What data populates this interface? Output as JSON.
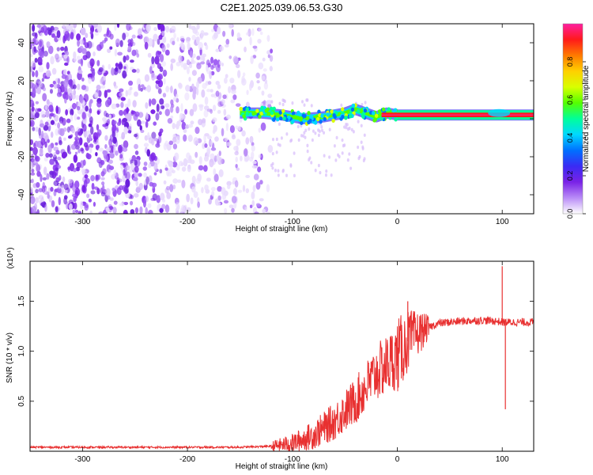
{
  "title": "C2E1.2025.039.06.53.G30",
  "chart_data": [
    {
      "type": "heatmap",
      "xlabel": "Height of straight line (km)",
      "ylabel": "Frequency (Hz)",
      "xlim": [
        -350,
        130
      ],
      "ylim": [
        -50,
        50
      ],
      "xticks": [
        -300,
        -200,
        -100,
        0,
        100
      ],
      "yticks": [
        -40,
        -20,
        0,
        20,
        40
      ],
      "colorbar": {
        "label": "Normalized spectral amplitude",
        "range": [
          0,
          1
        ],
        "ticks": [
          "0.0",
          "0.2",
          "0.4",
          "0.6",
          "0.8"
        ],
        "colors": [
          "#ffffff",
          "#b98cf7",
          "#7a22e6",
          "#3a2bf4",
          "#0070ff",
          "#00d8ff",
          "#00ff9a",
          "#54ff00",
          "#d8ff00",
          "#ffd000",
          "#ff7a00",
          "#ff1a1a",
          "#ff1fa0"
        ]
      },
      "signal_track": [
        {
          "x": -150,
          "y": 3
        },
        {
          "x": -130,
          "y": 3
        },
        {
          "x": -110,
          "y": 2
        },
        {
          "x": -90,
          "y": 0
        },
        {
          "x": -70,
          "y": 1
        },
        {
          "x": -50,
          "y": 3
        },
        {
          "x": -40,
          "y": 5
        },
        {
          "x": -30,
          "y": 3
        },
        {
          "x": -20,
          "y": 1
        },
        {
          "x": -10,
          "y": 3
        },
        {
          "x": 0,
          "y": 2
        },
        {
          "x": 50,
          "y": 2
        },
        {
          "x": 100,
          "y": 2
        },
        {
          "x": 130,
          "y": 2
        }
      ]
    },
    {
      "type": "line",
      "xlabel": "Height of straight line (km)",
      "ylabel": "SNR (10 * v/v)",
      "scale_label": "(x10⁴)",
      "xlim": [
        -350,
        130
      ],
      "ylim": [
        0,
        1.9
      ],
      "xticks": [
        -300,
        -200,
        -100,
        0,
        100
      ],
      "yticks": [
        "0.5",
        "1.0",
        "1.5"
      ],
      "series": [
        {
          "color": "#e83030",
          "points": [
            {
              "x": -350,
              "y": 0.04
            },
            {
              "x": -300,
              "y": 0.04
            },
            {
              "x": -250,
              "y": 0.04
            },
            {
              "x": -200,
              "y": 0.04
            },
            {
              "x": -150,
              "y": 0.04
            },
            {
              "x": -120,
              "y": 0.05
            },
            {
              "x": -100,
              "y": 0.08
            },
            {
              "x": -80,
              "y": 0.16
            },
            {
              "x": -60,
              "y": 0.3
            },
            {
              "x": -40,
              "y": 0.5
            },
            {
              "x": -20,
              "y": 0.78
            },
            {
              "x": 0,
              "y": 0.95
            },
            {
              "x": 10,
              "y": 1.1
            },
            {
              "x": 20,
              "y": 1.18
            },
            {
              "x": 30,
              "y": 1.24
            },
            {
              "x": 40,
              "y": 1.28
            },
            {
              "x": 60,
              "y": 1.3
            },
            {
              "x": 80,
              "y": 1.31
            },
            {
              "x": 95,
              "y": 1.3
            },
            {
              "x": 100,
              "y": 1.29
            },
            {
              "x": 110,
              "y": 1.29
            },
            {
              "x": 130,
              "y": 1.29
            }
          ],
          "spikes": [
            {
              "x": 10,
              "y": 1.5
            },
            {
              "x": 100,
              "y": 1.85
            },
            {
              "x": 103,
              "y": 0.42
            }
          ]
        }
      ]
    }
  ]
}
